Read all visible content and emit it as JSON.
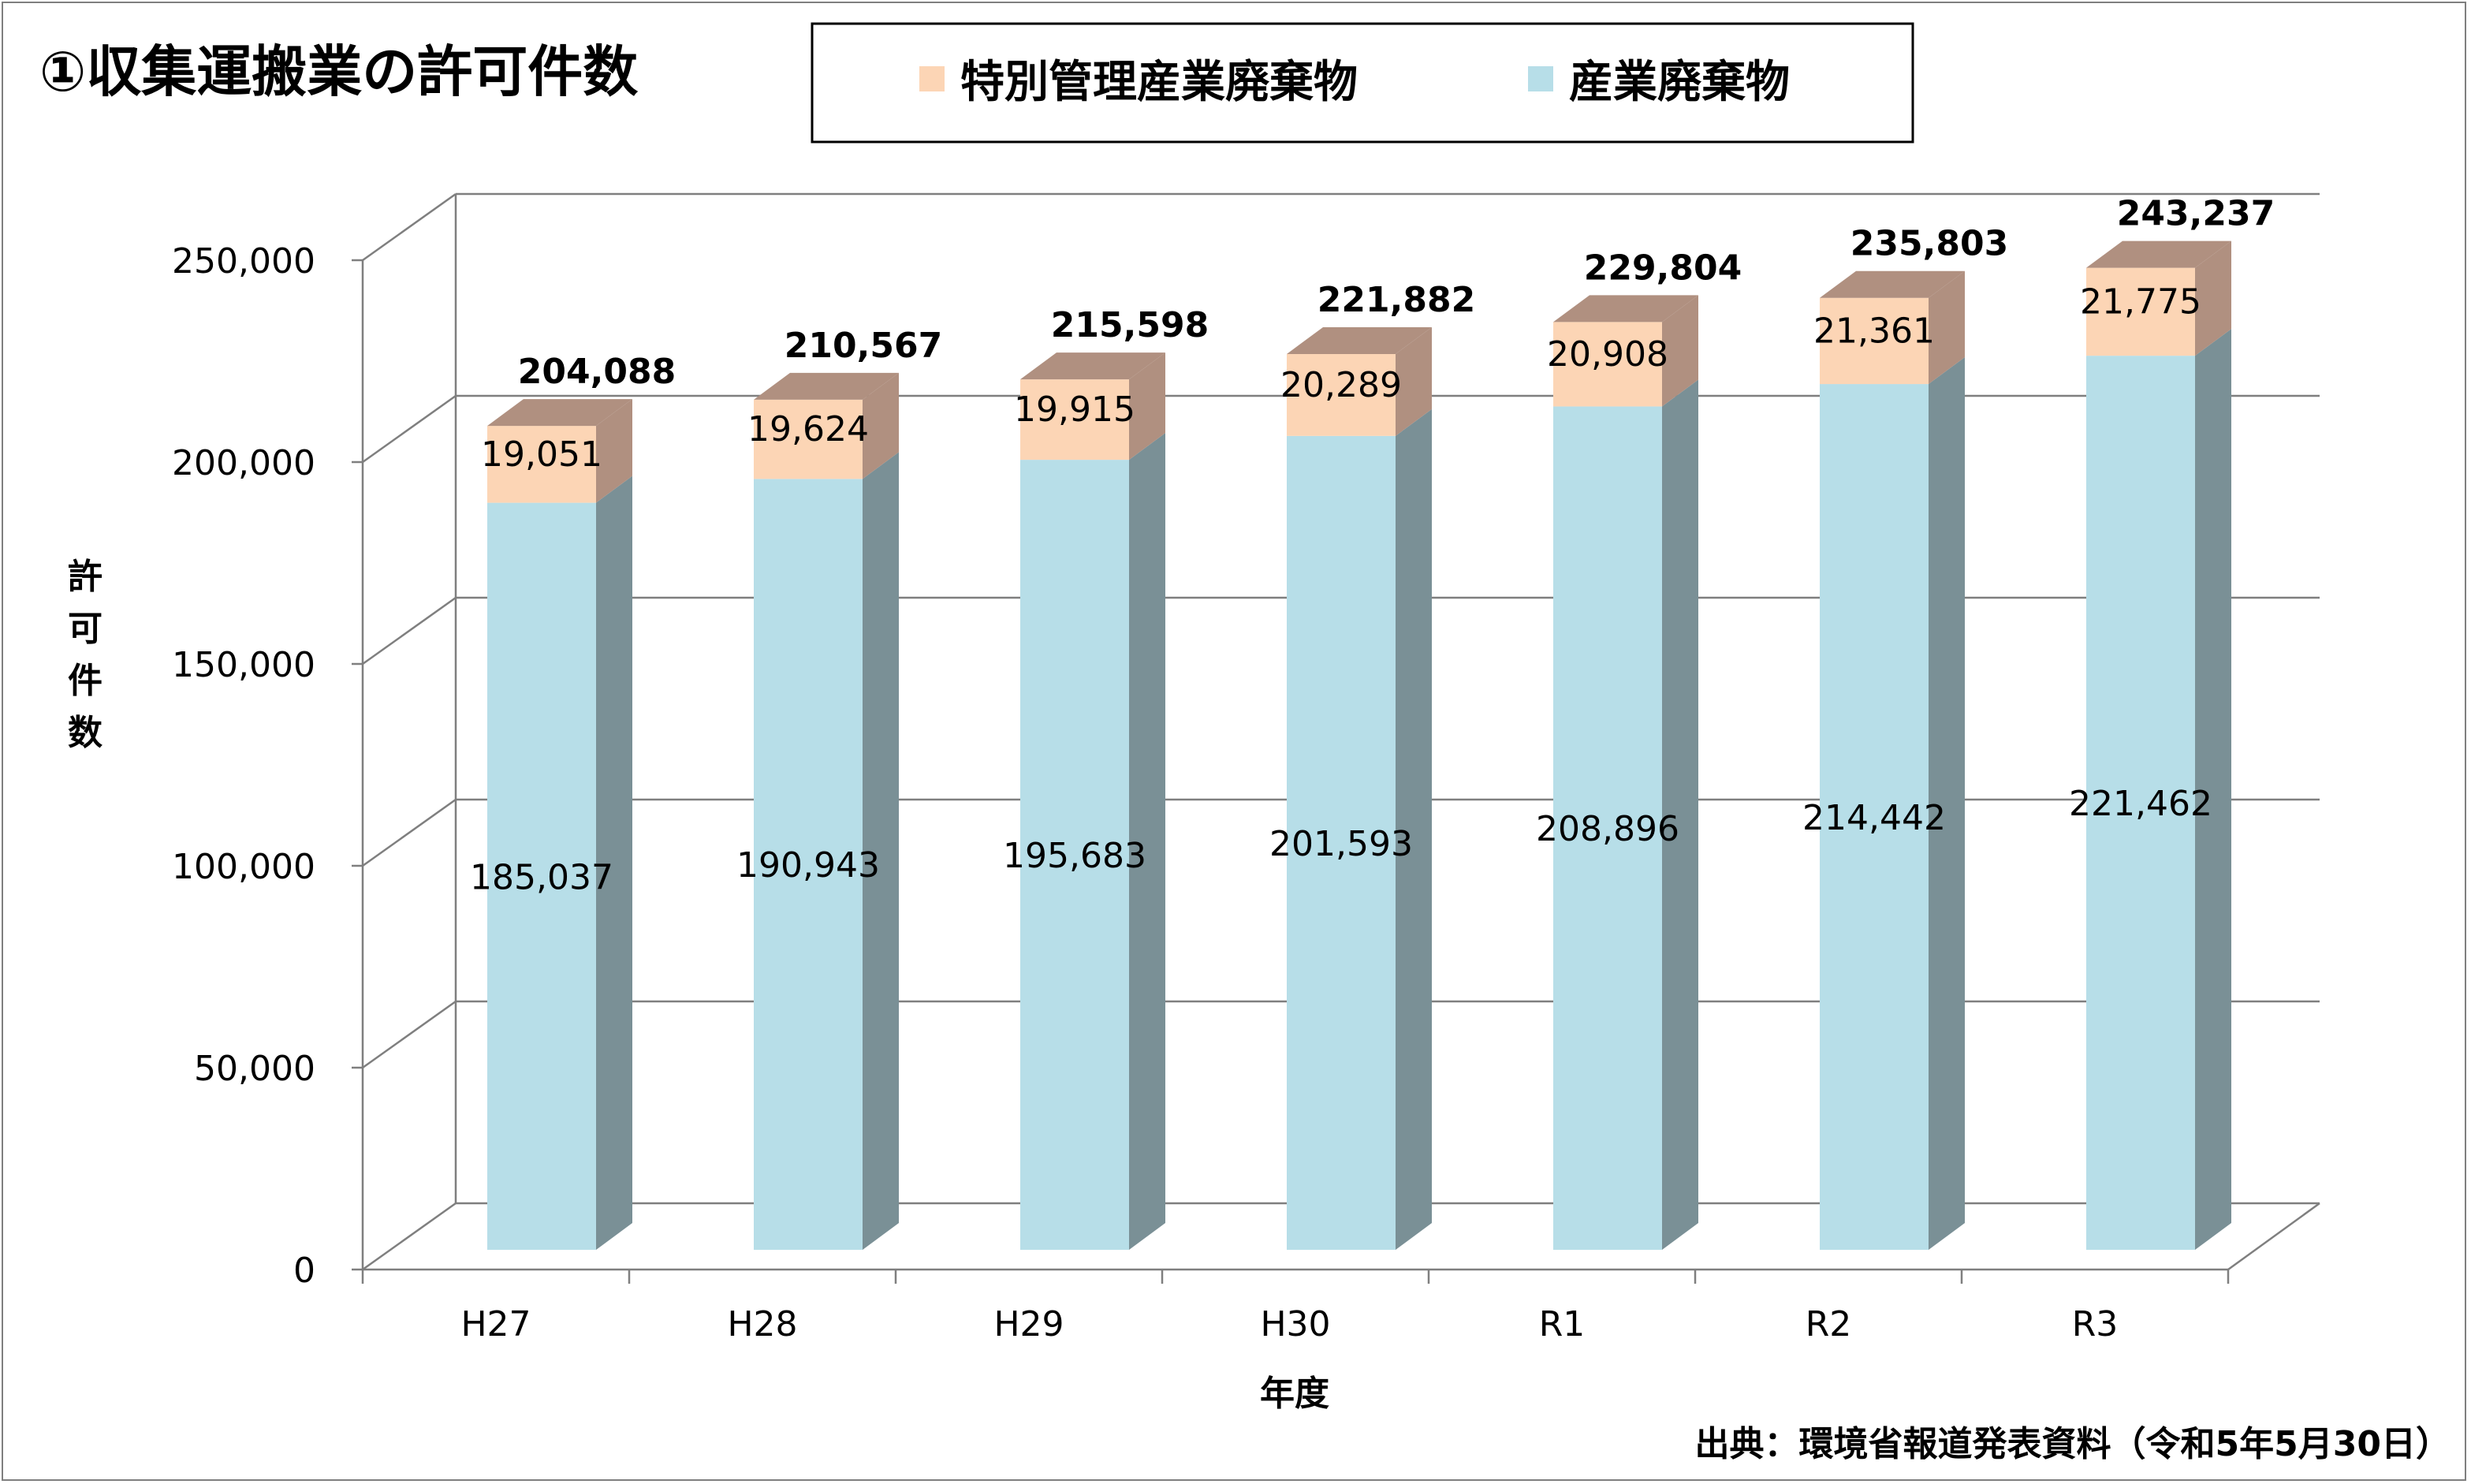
{
  "chart_data": {
    "type": "bar",
    "stacked": true,
    "three_d": true,
    "title": "①収集運搬業の許可件数",
    "xlabel": "年度",
    "ylabel": "許可件数",
    "ylim": [
      0,
      250000
    ],
    "ytick_step": 50000,
    "ytick_labels": [
      "0",
      "50,000",
      "100,000",
      "150,000",
      "200,000",
      "250,000"
    ],
    "categories": [
      "H27",
      "H28",
      "H29",
      "H30",
      "R1",
      "R2",
      "R3"
    ],
    "series": [
      {
        "name": "産業廃棄物",
        "color": "#B7DEE8",
        "side_color": "#7A9096",
        "values": [
          185037,
          190943,
          195683,
          201593,
          208896,
          214442,
          221462
        ],
        "labels": [
          "185,037",
          "190,943",
          "195,683",
          "201,593",
          "208,896",
          "214,442",
          "221,462"
        ]
      },
      {
        "name": "特別管理産業廃棄物",
        "color": "#FCD5B5",
        "side_color": "#B09080",
        "values": [
          19051,
          19624,
          19915,
          20289,
          20908,
          21361,
          21775
        ],
        "labels": [
          "19,051",
          "19,624",
          "19,915",
          "20,289",
          "20,908",
          "21,361",
          "21,775"
        ]
      }
    ],
    "totals": [
      204088,
      210567,
      215598,
      221882,
      229804,
      235803,
      243237
    ],
    "total_labels": [
      "204,088",
      "210,567",
      "215,598",
      "221,882",
      "229,804",
      "235,803",
      "243,237"
    ],
    "legend_order": [
      "特別管理産業廃棄物",
      "産業廃棄物"
    ],
    "legend_position": "top",
    "grid": true,
    "gridline_color": "#7f7f7f"
  },
  "source_note": "出典：環境省報道発表資料（令和5年5月30日）"
}
